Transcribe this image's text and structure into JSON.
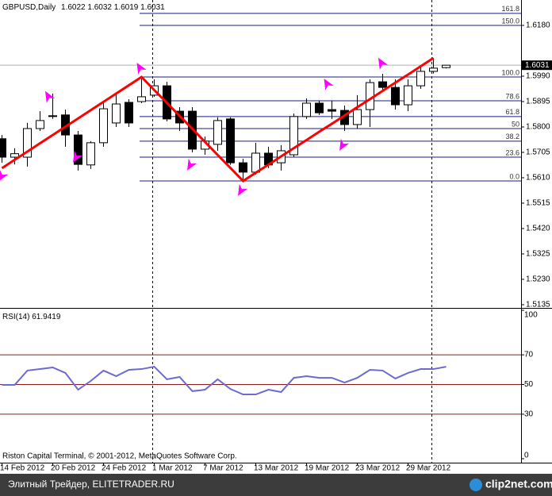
{
  "chart_data": [
    {
      "type": "candlestick",
      "title": "GBPUSD,Daily",
      "categories": [
        "14 Feb 2012",
        null,
        null,
        null,
        "20 Feb 2012",
        null,
        null,
        null,
        "24 Feb 2012",
        null,
        null,
        null,
        "1 Mar 2012",
        null,
        null,
        null,
        "7 Mar 2012",
        null,
        null,
        null,
        "13 Mar 2012",
        null,
        null,
        null,
        "19 Mar 2012",
        null,
        null,
        null,
        "23 Mar 2012",
        null,
        null,
        null,
        "29 Mar 2012",
        null,
        null,
        null
      ],
      "open": [
        1.5756,
        1.5687,
        1.5687,
        1.5794,
        1.5842,
        1.5845,
        1.577,
        1.5658,
        1.5741,
        1.5815,
        1.5892,
        1.5895,
        1.5919,
        1.5954,
        1.5859,
        1.5859,
        1.5717,
        1.5735,
        1.583,
        1.5666,
        1.5631,
        1.5702,
        1.5666,
        1.5696,
        1.5839,
        1.5889,
        1.5865,
        1.5862,
        1.5809,
        1.5865,
        1.5969,
        1.5948,
        1.5883,
        1.5954,
        1.6008,
        1.6022
      ],
      "high": [
        1.577,
        1.572,
        1.5815,
        1.5859,
        1.5925,
        1.5865,
        1.5785,
        1.5747,
        1.5895,
        1.5925,
        1.5904,
        1.5987,
        1.5978,
        1.5969,
        1.5874,
        1.5874,
        1.5764,
        1.5836,
        1.5836,
        1.5681,
        1.5741,
        1.5726,
        1.5732,
        1.585,
        1.5907,
        1.5898,
        1.5898,
        1.588,
        1.5919,
        1.5978,
        1.5999,
        1.5978,
        1.5978,
        1.6023,
        1.6058,
        1.6032
      ],
      "low": [
        1.5666,
        1.566,
        1.5652,
        1.5785,
        1.583,
        1.5726,
        1.5637,
        1.5643,
        1.5726,
        1.58,
        1.58,
        1.5889,
        1.5913,
        1.5821,
        1.5785,
        1.5705,
        1.5696,
        1.5711,
        1.5658,
        1.5598,
        1.5622,
        1.5646,
        1.5637,
        1.5687,
        1.583,
        1.5845,
        1.583,
        1.5785,
        1.5794,
        1.58,
        1.5934,
        1.5865,
        1.5859,
        1.5943,
        1.6,
        1.6019
      ],
      "close": [
        1.5687,
        1.57,
        1.5794,
        1.5824,
        1.5839,
        1.577,
        1.566,
        1.5741,
        1.5868,
        1.5886,
        1.5815,
        1.5913,
        1.5954,
        1.583,
        1.5815,
        1.5717,
        1.5747,
        1.5824,
        1.5666,
        1.5631,
        1.5702,
        1.5658,
        1.5711,
        1.5839,
        1.5889,
        1.5853,
        1.5859,
        1.5809,
        1.5865,
        1.5966,
        1.5948,
        1.5883,
        1.5954,
        1.6008,
        1.602,
        1.6031
      ],
      "zigzag": {
        "color": "#ff0000",
        "values": [
          1.5646,
          1.5677,
          1.5708,
          1.5739,
          1.577,
          1.5801,
          1.5832,
          1.5863,
          1.5894,
          1.5925,
          1.5956,
          1.5987,
          1.5938,
          1.589,
          1.5841,
          1.5793,
          1.5744,
          1.5695,
          1.5647,
          1.5598,
          1.5629,
          1.5659,
          1.569,
          1.5721,
          1.5751,
          1.5782,
          1.5812,
          1.5843,
          1.5874,
          1.5904,
          1.5935,
          1.5966,
          1.5996,
          1.6027,
          1.6058,
          null
        ]
      },
      "fibonacci": {
        "color": "#1c1c80",
        "levels": [
          161.8,
          {
            "value": 150,
            "label": "150.0"
          },
          {
            "value": 100,
            "label": "100.0"
          },
          78.6,
          61.8,
          50,
          38.2,
          23.6,
          {
            "value": 0,
            "label": "0.0"
          }
        ],
        "prices": [
          1.6225,
          1.618,
          1.5987,
          1.5898,
          1.5839,
          1.5794,
          1.5747,
          1.5687,
          1.5598
        ]
      },
      "ylim": [
        1.5123,
        1.6275
      ],
      "yticks": [
        {
          "value": 1.618,
          "label": "1.6180"
        },
        {
          "value": 1.599,
          "label": "1.5990"
        },
        1.5895,
        {
          "value": 1.58,
          "label": "1.5800"
        },
        1.5705,
        {
          "value": 1.561,
          "label": "1.5610"
        },
        1.5515,
        {
          "value": 1.542,
          "label": "1.5420"
        },
        1.5325,
        {
          "value": 1.523,
          "label": "1.5230"
        },
        1.5135
      ],
      "copyright": "Riston Capital Terminal, © 2001-2012, MetaQuotes Software Corp."
    },
    {
      "type": "line",
      "title": "RSI(14)",
      "color": "#6a6ad0",
      "values": [
        49.7,
        49.7,
        59.4,
        60.4,
        61.5,
        57.8,
        46.5,
        52.4,
        59.4,
        55.6,
        59.9,
        60.4,
        62.0,
        53.5,
        55.1,
        45.5,
        46.5,
        53.5,
        47.0,
        43.3,
        43.3,
        46.5,
        44.9,
        54.5,
        55.6,
        54.5,
        54.5,
        51.3,
        54.5,
        59.9,
        59.4,
        54.0,
        57.8,
        60.4,
        60.4,
        61.9419
      ],
      "ylim": [
        0,
        100
      ],
      "yticks": [
        100,
        70,
        50,
        30,
        0
      ],
      "levels": [
        70,
        50,
        30
      ],
      "level_color": "#8b1a1a"
    }
  ],
  "footer": {
    "site": "Элитный Трейдер, ELITETRADER.RU",
    "logo": "clip2net.com"
  }
}
